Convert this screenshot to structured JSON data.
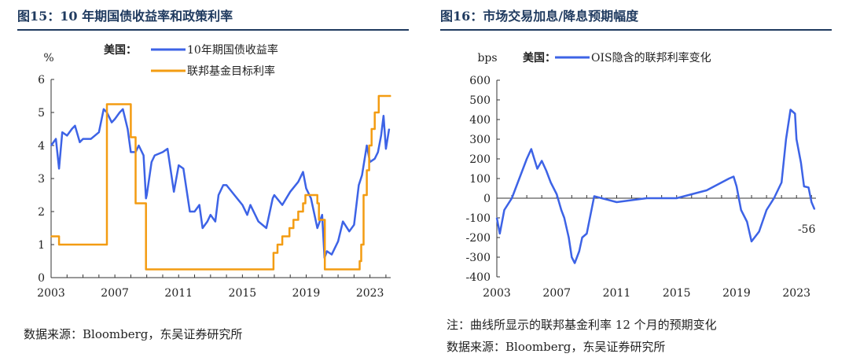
{
  "left": {
    "title": "图15：10 年期国债收益率和政策利率",
    "unit": "%",
    "legend_prefix": "美国：",
    "source": "数据来源：Bloomberg，东吴证券研究所"
  },
  "right": {
    "title": "图16：市场交易加息/降息预期幅度",
    "unit": "bps",
    "legend_prefix": "美国：",
    "note": "注：曲线所显示的联邦基金利率 12 个月的预期变化",
    "source": "数据来源：Bloomberg，东吴证券研究所"
  },
  "chart_data": [
    {
      "type": "line",
      "title": "10 年期国债收益率和政策利率",
      "ylabel": "%",
      "ylim": [
        0,
        6
      ],
      "xlim": [
        2003,
        2024.3
      ],
      "x_ticks": [
        "2003",
        "2007",
        "2011",
        "2015",
        "2019",
        "2023"
      ],
      "y_ticks": [
        "0",
        "1",
        "2",
        "3",
        "4",
        "5",
        "6"
      ],
      "grid": false,
      "legend": "top",
      "series": [
        {
          "name": "10年期国债收益率",
          "color": "#3d63e6",
          "x": [
            2003.0,
            2003.3,
            2003.5,
            2003.7,
            2004.0,
            2004.3,
            2004.5,
            2004.8,
            2005.0,
            2005.5,
            2006.0,
            2006.3,
            2006.5,
            2006.8,
            2007.0,
            2007.3,
            2007.5,
            2007.8,
            2008.0,
            2008.3,
            2008.5,
            2008.8,
            2008.95,
            2009.0,
            2009.3,
            2009.5,
            2010.0,
            2010.3,
            2010.7,
            2011.0,
            2011.3,
            2011.7,
            2012.0,
            2012.3,
            2012.5,
            2012.8,
            2013.0,
            2013.3,
            2013.5,
            2013.8,
            2014.0,
            2014.5,
            2015.0,
            2015.3,
            2015.5,
            2016.0,
            2016.5,
            2016.9,
            2017.0,
            2017.5,
            2018.0,
            2018.5,
            2018.8,
            2019.0,
            2019.3,
            2019.7,
            2020.0,
            2020.15,
            2020.3,
            2020.6,
            2021.0,
            2021.3,
            2021.7,
            2022.0,
            2022.3,
            2022.5,
            2022.8,
            2023.0,
            2023.3,
            2023.5,
            2023.7,
            2023.85,
            2024.0,
            2024.2
          ],
          "values": [
            4.0,
            4.2,
            3.3,
            4.4,
            4.3,
            4.5,
            4.6,
            4.1,
            4.2,
            4.2,
            4.4,
            5.1,
            5.0,
            4.7,
            4.8,
            5.0,
            5.1,
            4.5,
            3.8,
            3.8,
            4.0,
            3.7,
            2.4,
            2.5,
            3.5,
            3.7,
            3.8,
            3.9,
            2.6,
            3.4,
            3.3,
            2.0,
            2.0,
            2.2,
            1.5,
            1.7,
            1.9,
            1.7,
            2.5,
            2.8,
            2.8,
            2.5,
            2.2,
            1.9,
            2.2,
            1.7,
            1.5,
            2.4,
            2.5,
            2.2,
            2.6,
            2.9,
            3.2,
            2.7,
            2.4,
            1.5,
            1.9,
            0.6,
            0.8,
            0.7,
            1.1,
            1.7,
            1.4,
            1.6,
            2.8,
            3.1,
            4.0,
            3.5,
            3.6,
            3.8,
            4.3,
            4.9,
            3.9,
            4.5
          ]
        },
        {
          "name": "联邦基金目标利率",
          "color": "#f39c12",
          "x": [
            2003.0,
            2003.5,
            2004.5,
            2006.5,
            2007.7,
            2008.0,
            2008.3,
            2008.95,
            2015.95,
            2016.95,
            2017.2,
            2017.5,
            2017.95,
            2018.2,
            2018.5,
            2018.8,
            2018.95,
            2019.5,
            2019.7,
            2019.8,
            2020.17,
            2022.2,
            2022.35,
            2022.45,
            2022.6,
            2022.8,
            2022.95,
            2023.1,
            2023.3,
            2023.55,
            2024.3
          ],
          "values": [
            1.25,
            1.0,
            1.0,
            5.25,
            5.25,
            4.25,
            2.25,
            0.25,
            0.25,
            0.75,
            1.0,
            1.25,
            1.5,
            1.75,
            2.0,
            2.25,
            2.5,
            2.5,
            2.25,
            1.75,
            0.25,
            0.25,
            0.5,
            1.0,
            2.5,
            3.25,
            4.0,
            4.5,
            5.0,
            5.5,
            5.5
          ]
        }
      ]
    },
    {
      "type": "line",
      "title": "市场交易加息/降息预期幅度",
      "ylabel": "bps",
      "ylim": [
        -400,
        600
      ],
      "xlim": [
        2003,
        2024.3
      ],
      "x_ticks": [
        "2003",
        "2007",
        "2011",
        "2015",
        "2019",
        "2023"
      ],
      "y_ticks": [
        "-400",
        "-300",
        "-200",
        "-100",
        "0",
        "100",
        "200",
        "300",
        "400",
        "500",
        "600"
      ],
      "grid": false,
      "legend": "top",
      "annotations": [
        {
          "text": "-56",
          "color": "#e02020"
        }
      ],
      "series": [
        {
          "name": "OIS隐含的联邦利率变化",
          "color": "#3d63e6",
          "x": [
            2003.0,
            2003.2,
            2003.5,
            2004.0,
            2004.5,
            2005.0,
            2005.3,
            2005.7,
            2006.0,
            2006.3,
            2006.6,
            2007.0,
            2007.3,
            2007.5,
            2007.8,
            2008.0,
            2008.2,
            2008.5,
            2008.7,
            2009.0,
            2009.5,
            2010.0,
            2011.0,
            2012.0,
            2013.0,
            2014.0,
            2015.0,
            2016.0,
            2017.0,
            2017.5,
            2018.0,
            2018.5,
            2018.8,
            2019.0,
            2019.3,
            2019.7,
            2020.0,
            2020.5,
            2021.0,
            2021.5,
            2022.0,
            2022.3,
            2022.6,
            2022.9,
            2023.0,
            2023.3,
            2023.5,
            2023.8,
            2024.0,
            2024.2
          ],
          "values": [
            -100,
            -180,
            -60,
            0,
            100,
            200,
            250,
            150,
            190,
            140,
            80,
            20,
            -60,
            -100,
            -200,
            -300,
            -330,
            -270,
            -200,
            -180,
            10,
            0,
            -20,
            -10,
            0,
            0,
            0,
            20,
            40,
            60,
            80,
            100,
            110,
            60,
            -60,
            -120,
            -220,
            -170,
            -60,
            0,
            80,
            300,
            450,
            430,
            300,
            180,
            60,
            55,
            -20,
            -56
          ]
        }
      ]
    }
  ]
}
